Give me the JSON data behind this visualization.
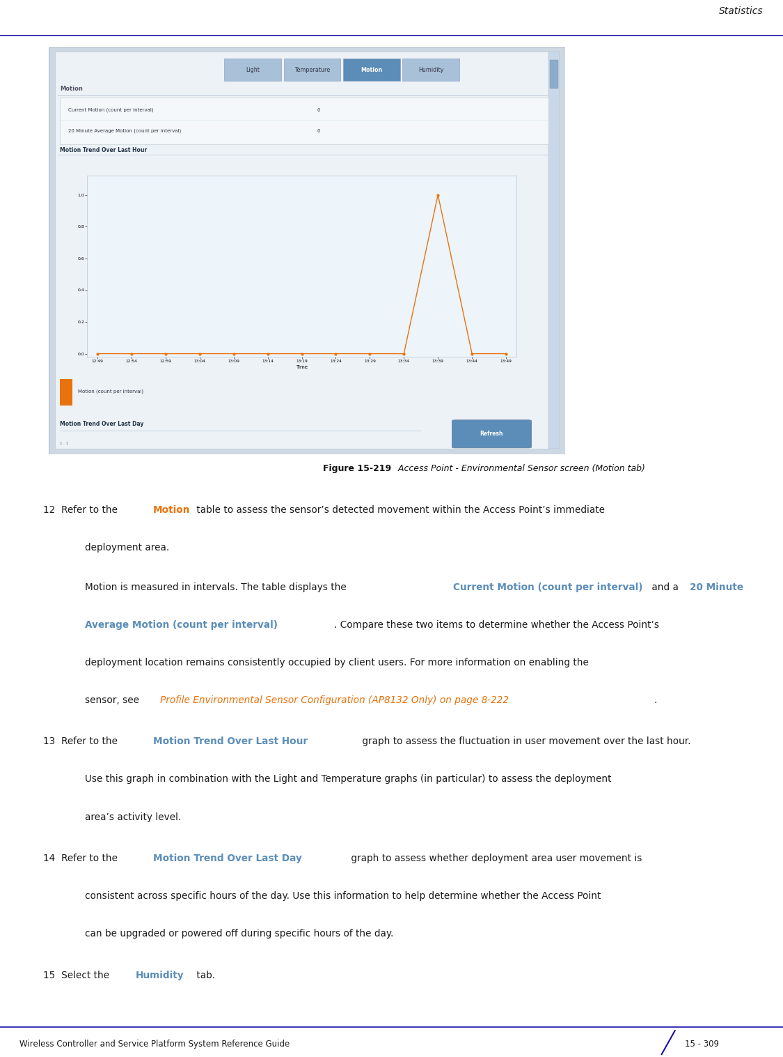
{
  "page_title": "Statistics",
  "footer_left": "Wireless Controller and Service Platform System Reference Guide",
  "footer_right": "15 - 309",
  "figure_caption_bold": "Figure 15-219",
  "figure_caption_normal": "  Access Point - Environmental Sensor screen (Motion tab)",
  "tab_labels": [
    "Light",
    "Temperature",
    "Motion",
    "Humidity"
  ],
  "active_tab": "Motion",
  "section_title": "Motion",
  "table_rows": [
    [
      "Current Motion (count per interval)",
      "0"
    ],
    [
      "20 Minute Average Motion (count per interval)",
      "0"
    ]
  ],
  "graph1_title": "Motion Trend Over Last Hour",
  "graph1_xlabel": "Time",
  "graph1_yticks": [
    0,
    0.2,
    0.4,
    0.6,
    0.8,
    1
  ],
  "graph1_xticks": [
    "12:49",
    "12:54",
    "12:59",
    "13:04",
    "13:09",
    "13:14",
    "13:19",
    "13:24",
    "13:29",
    "13:34",
    "13:39",
    "13:44",
    "13:49"
  ],
  "graph1_line_color": "#E8720C",
  "graph1_peak_index": 11,
  "graph1_peak_value": 1.0,
  "graph1_n_points": 13,
  "graph2_title": "Motion Trend Over Last Day",
  "legend_label": "Motion (count per interval)",
  "legend_color": "#E8720C",
  "bg_color": "#ffffff",
  "header_line_color": "#1a0dab",
  "footer_line_color": "#1a0dab",
  "ss_outer_bg": "#dce3ea",
  "ss_inner_bg": "#ffffff",
  "tab_inactive_color": "#a8c0d8",
  "tab_active_color": "#5b8db8",
  "scrollbar_bg": "#c8d4de",
  "scrollbar_btn": "#8aa8c0",
  "refresh_btn_color": "#5b8db8",
  "graph_bg": "#f0f4f8",
  "motion_orange": "#E8720C",
  "link_color": "#E8720C",
  "highlight_color": "#5b8db8"
}
